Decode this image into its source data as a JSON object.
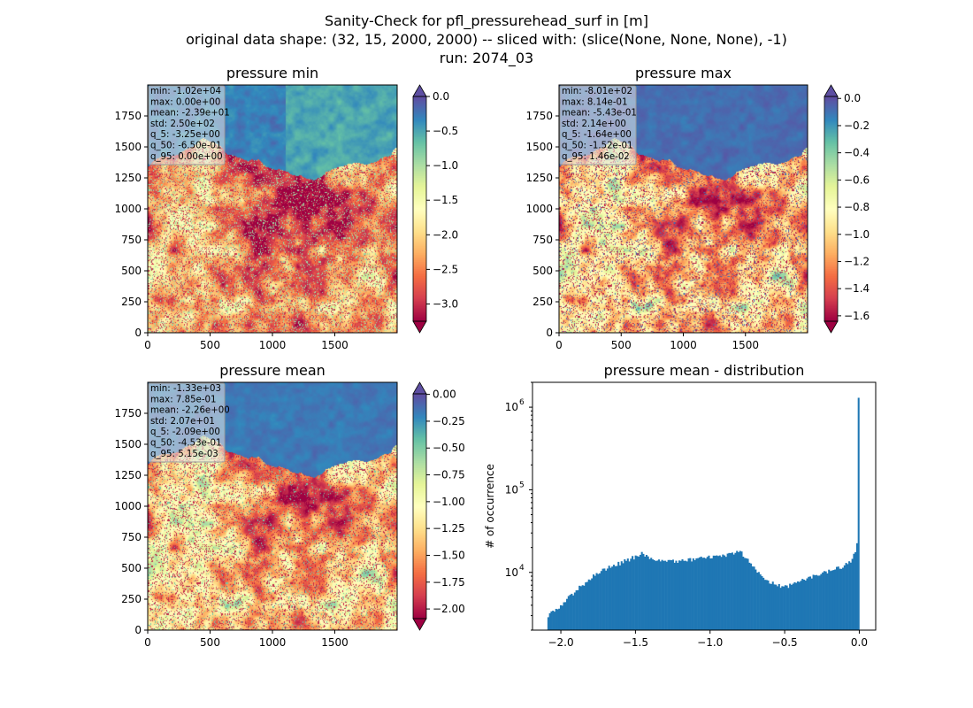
{
  "figure": {
    "title_line1": "Sanity-Check for pfl_pressurehead_surf in [m]",
    "title_line2": "original data shape: (32, 15, 2000, 2000) -- sliced with: (slice(None, None, None), -1)",
    "title_line3": "run: 2074_03"
  },
  "colormap": "Spectral",
  "chart_data": [
    {
      "type": "heatmap",
      "title": "pressure min",
      "x_ticks": [
        0,
        500,
        1000,
        1500
      ],
      "y_ticks": [
        0,
        250,
        500,
        750,
        1000,
        1250,
        1500,
        1750
      ],
      "xlim": [
        0,
        2000
      ],
      "ylim": [
        0,
        2000
      ],
      "colorbar": {
        "min": -3.25,
        "max": 0.0,
        "ticks": [
          0.0,
          -0.5,
          -1.0,
          -1.5,
          -2.0,
          -2.5,
          -3.0
        ],
        "tick_labels": [
          "0.0",
          "−0.5",
          "−1.0",
          "−1.5",
          "−2.0",
          "−2.5",
          "−3.0"
        ],
        "extend": "both"
      },
      "stats": [
        "min: -1.02e+04",
        "max: 0.00e+00",
        "mean: -2.39e+01",
        "std: 2.50e+02",
        "q_5: -3.25e+00",
        "q_50: -6.50e-01",
        "q_95: 0.00e+00"
      ]
    },
    {
      "type": "heatmap",
      "title": "pressure max",
      "x_ticks": [
        0,
        500,
        1000,
        1500
      ],
      "y_ticks": [
        0,
        250,
        500,
        750,
        1000,
        1250,
        1500,
        1750
      ],
      "xlim": [
        0,
        2000
      ],
      "ylim": [
        0,
        2000
      ],
      "colorbar": {
        "min": -1.64,
        "max": 0.0146,
        "ticks": [
          0.0,
          -0.2,
          -0.4,
          -0.6,
          -0.8,
          -1.0,
          -1.2,
          -1.4,
          -1.6
        ],
        "tick_labels": [
          "0.0",
          "−0.2",
          "−0.4",
          "−0.6",
          "−0.8",
          "−1.0",
          "−1.2",
          "−1.4",
          "−1.6"
        ],
        "extend": "both"
      },
      "stats": [
        "min: -8.01e+02",
        "max: 8.14e-01",
        "mean: -5.43e-01",
        "std: 2.14e+00",
        "q_5: -1.64e+00",
        "q_50: -1.52e-01",
        "q_95: 1.46e-02"
      ]
    },
    {
      "type": "heatmap",
      "title": "pressure mean",
      "x_ticks": [
        0,
        500,
        1000,
        1500
      ],
      "y_ticks": [
        0,
        250,
        500,
        750,
        1000,
        1250,
        1500,
        1750
      ],
      "xlim": [
        0,
        2000
      ],
      "ylim": [
        0,
        2000
      ],
      "colorbar": {
        "min": -2.09,
        "max": 0.00515,
        "ticks": [
          0.0,
          -0.25,
          -0.5,
          -0.75,
          -1.0,
          -1.25,
          -1.5,
          -1.75,
          -2.0
        ],
        "tick_labels": [
          "0.00",
          "−0.25",
          "−0.50",
          "−0.75",
          "−1.00",
          "−1.25",
          "−1.50",
          "−1.75",
          "−2.00"
        ],
        "extend": "both"
      },
      "stats": [
        "min: -1.33e+03",
        "max: 7.85e-01",
        "mean: -2.26e+00",
        "std: 2.07e+01",
        "q_5: -2.09e+00",
        "q_50: -4.53e-01",
        "q_95: 5.15e-03"
      ]
    },
    {
      "type": "bar",
      "title": "pressure mean - distribution",
      "ylabel": "# of occurrence",
      "xlabel": "",
      "y_scale": "log",
      "xlim": [
        -2.19,
        0.11
      ],
      "ylim": [
        2000,
        2000000
      ],
      "x_ticks": [
        -2.0,
        -1.5,
        -1.0,
        -0.5,
        0.0
      ],
      "x_tick_labels": [
        "−2.0",
        "−1.5",
        "−1.0",
        "−0.5",
        "0.0"
      ],
      "y_major_ticks": [
        10000,
        100000,
        1000000
      ],
      "y_major_labels": [
        "10",
        "10",
        "10"
      ],
      "y_major_exponents": [
        "4",
        "5",
        "6"
      ],
      "color": "#1f77b4",
      "bin_range": [
        -2.09,
        0.0
      ],
      "bin_count": 200,
      "profile": [
        [
          -2.09,
          2800
        ],
        [
          -2.06,
          3300
        ],
        [
          -2.0,
          4000
        ],
        [
          -1.9,
          6000
        ],
        [
          -1.8,
          8500
        ],
        [
          -1.7,
          11000
        ],
        [
          -1.6,
          13000
        ],
        [
          -1.5,
          15500
        ],
        [
          -1.45,
          17000
        ],
        [
          -1.4,
          15000
        ],
        [
          -1.3,
          13500
        ],
        [
          -1.2,
          13500
        ],
        [
          -1.1,
          14500
        ],
        [
          -1.0,
          15500
        ],
        [
          -0.9,
          16000
        ],
        [
          -0.85,
          17000
        ],
        [
          -0.8,
          17500
        ],
        [
          -0.78,
          16500
        ],
        [
          -0.75,
          14000
        ],
        [
          -0.7,
          11000
        ],
        [
          -0.65,
          9000
        ],
        [
          -0.6,
          7500
        ],
        [
          -0.55,
          7000
        ],
        [
          -0.5,
          6700
        ],
        [
          -0.45,
          7000
        ],
        [
          -0.4,
          7800
        ],
        [
          -0.3,
          9200
        ],
        [
          -0.2,
          10500
        ],
        [
          -0.1,
          12000
        ],
        [
          -0.05,
          14000
        ],
        [
          -0.03,
          17000
        ],
        [
          -0.015,
          22000
        ],
        [
          -0.008,
          35000
        ],
        [
          0.0,
          1300000
        ]
      ]
    }
  ]
}
